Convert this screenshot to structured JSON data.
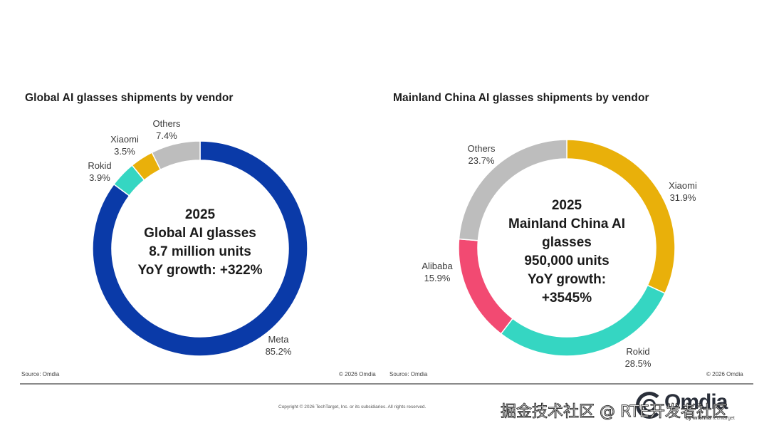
{
  "colors": {
    "meta": "#0a3aa8",
    "rokid": "#35d6c2",
    "xiaomi": "#e9b00a",
    "others": "#bdbdbd",
    "alibaba": "#f24a72"
  },
  "chart_data": [
    {
      "type": "pie",
      "subtype": "donut",
      "title": "Global AI glasses shipments by vendor",
      "categories": [
        "Meta",
        "Rokid",
        "Xiaomi",
        "Others"
      ],
      "values": [
        85.2,
        3.9,
        3.5,
        7.4
      ],
      "value_labels": [
        "85.2%",
        "3.9%",
        "3.5%",
        "7.4%"
      ],
      "colors": [
        "#0a3aa8",
        "#35d6c2",
        "#e9b00a",
        "#bdbdbd"
      ],
      "start": "12 o'clock, clockwise",
      "center_text": [
        "2025",
        "Global AI glasses",
        "8.7 million units",
        "YoY growth: +322%"
      ],
      "source": "Source: Omdia",
      "copyright": "© 2026 Omdia"
    },
    {
      "type": "pie",
      "subtype": "donut",
      "title": "Mainland China AI glasses shipments by vendor",
      "categories": [
        "Xiaomi",
        "Rokid",
        "Alibaba",
        "Others"
      ],
      "values": [
        31.9,
        28.5,
        15.9,
        23.7
      ],
      "value_labels": [
        "31.9%",
        "28.5%",
        "15.9%",
        "23.7%"
      ],
      "colors": [
        "#e9b00a",
        "#35d6c2",
        "#f24a72",
        "#bdbdbd"
      ],
      "start": "12 o'clock, clockwise",
      "center_text": [
        "2025",
        "Mainland China AI",
        "glasses",
        "950,000 units",
        "YoY growth:",
        "+3545%"
      ],
      "source": "Source: Omdia",
      "copyright": "© 2026 Omdia"
    }
  ],
  "footer": {
    "copyright": "Copyright © 2026 TechTarget, Inc. or its subsidiaries. All rights reserved.",
    "logo_word": "Omdia",
    "logo_sub_bold": "by informa",
    "logo_sub": " techtarget",
    "watermark": "掘金技术社区 @ RTE开发者社区"
  }
}
